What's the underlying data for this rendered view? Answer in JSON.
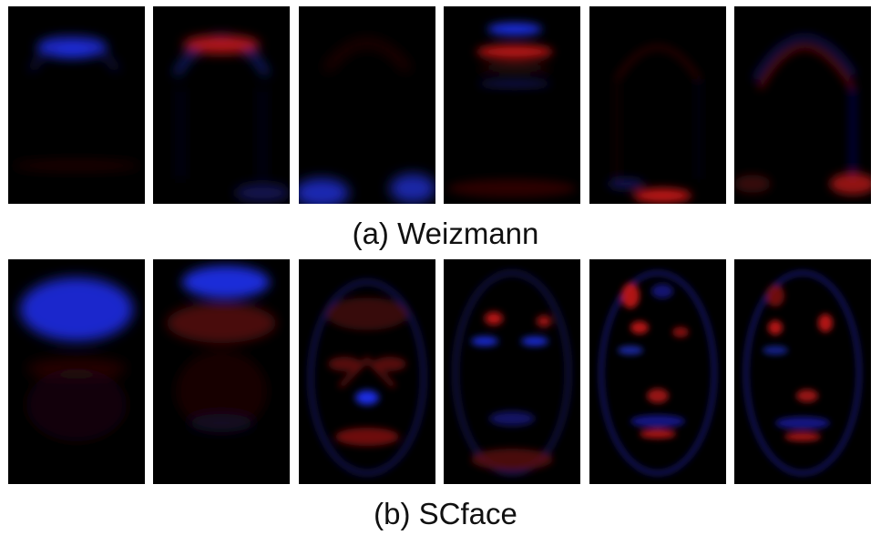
{
  "figure": {
    "rows": [
      {
        "caption": "(a) Weizmann",
        "panels": [
          {
            "name": "weizmann-pc-1",
            "dominant": "blue"
          },
          {
            "name": "weizmann-pc-2",
            "dominant": "red"
          },
          {
            "name": "weizmann-pc-3",
            "dominant": "blue"
          },
          {
            "name": "weizmann-pc-4",
            "dominant": "mixed"
          },
          {
            "name": "weizmann-pc-5",
            "dominant": "red"
          },
          {
            "name": "weizmann-pc-6",
            "dominant": "mixed"
          }
        ]
      },
      {
        "caption": "(b) SCface",
        "panels": [
          {
            "name": "scface-pc-1",
            "dominant": "blue"
          },
          {
            "name": "scface-pc-2",
            "dominant": "mixed"
          },
          {
            "name": "scface-pc-3",
            "dominant": "mixed"
          },
          {
            "name": "scface-pc-4",
            "dominant": "mixed"
          },
          {
            "name": "scface-pc-5",
            "dominant": "mixed"
          },
          {
            "name": "scface-pc-6",
            "dominant": "mixed"
          }
        ]
      }
    ],
    "colors": {
      "positive": "#d01818",
      "negative": "#2030f0",
      "background": "#000000"
    }
  }
}
